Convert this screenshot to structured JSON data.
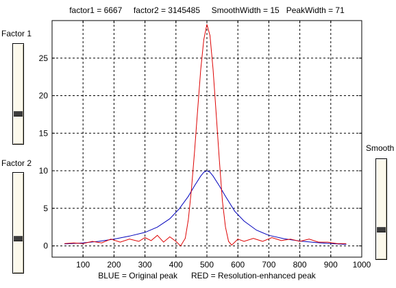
{
  "header": {
    "title": "factor1 = 6667     factor2 = 3145485     SmoothWidth = 15   PeakWidth = 71"
  },
  "footer": {
    "xlabel": "BLUE = Original peak      RED = Resolution-enhanced peak"
  },
  "sliders": [
    {
      "label": "Factor 1",
      "value": 0.29
    },
    {
      "label": "Factor 2",
      "value": 0.33
    },
    {
      "label": "Smooth",
      "value": 0.28
    }
  ],
  "chart_data": {
    "type": "line",
    "title": "factor1 = 6667     factor2 = 3145485     SmoothWidth = 15   PeakWidth = 71",
    "xlabel": "BLUE = Original peak      RED = Resolution-enhanced peak",
    "ylabel": "",
    "xlim": [
      0,
      1000
    ],
    "ylim": [
      -1.5,
      30
    ],
    "xticks": [
      100,
      200,
      300,
      400,
      500,
      600,
      700,
      800,
      900,
      1000
    ],
    "yticks": [
      0,
      5,
      10,
      15,
      20,
      25
    ],
    "grid": true,
    "colors": {
      "original": "#0000bb",
      "enhanced": "#dd0000"
    },
    "series": [
      {
        "color": "#0000bb",
        "x": [
          40,
          100,
          150,
          200,
          250,
          300,
          340,
          380,
          410,
          440,
          460,
          480,
          490,
          500,
          510,
          520,
          540,
          560,
          590,
          620,
          660,
          700,
          750,
          800,
          850,
          900,
          950
        ],
        "y": [
          0.25,
          0.4,
          0.6,
          0.9,
          1.3,
          1.8,
          2.5,
          3.6,
          4.9,
          6.6,
          8.0,
          9.3,
          9.8,
          10.0,
          9.8,
          9.3,
          8.0,
          6.6,
          4.6,
          3.3,
          2.1,
          1.4,
          0.95,
          0.65,
          0.45,
          0.3,
          0.2
        ]
      },
      {
        "color": "#dd0000",
        "x": [
          40,
          70,
          100,
          130,
          160,
          190,
          220,
          250,
          280,
          300,
          320,
          340,
          360,
          380,
          400,
          415,
          430,
          440,
          450,
          460,
          470,
          480,
          490,
          500,
          510,
          520,
          530,
          540,
          550,
          560,
          570,
          580,
          600,
          620,
          650,
          680,
          710,
          740,
          770,
          800,
          830,
          860,
          890,
          920,
          950
        ],
        "y": [
          0.3,
          0.4,
          0.3,
          0.6,
          0.4,
          0.9,
          0.5,
          0.9,
          0.6,
          1.1,
          0.7,
          1.4,
          0.5,
          1.2,
          0.6,
          0.0,
          1.0,
          3.5,
          7.5,
          12.5,
          18.0,
          23.5,
          27.5,
          29.5,
          28.0,
          23.5,
          17.5,
          11.5,
          6.0,
          2.5,
          0.6,
          0.1,
          0.9,
          0.6,
          1.0,
          0.6,
          1.1,
          0.7,
          0.9,
          0.6,
          0.9,
          0.5,
          0.5,
          0.3,
          0.3
        ]
      }
    ]
  }
}
